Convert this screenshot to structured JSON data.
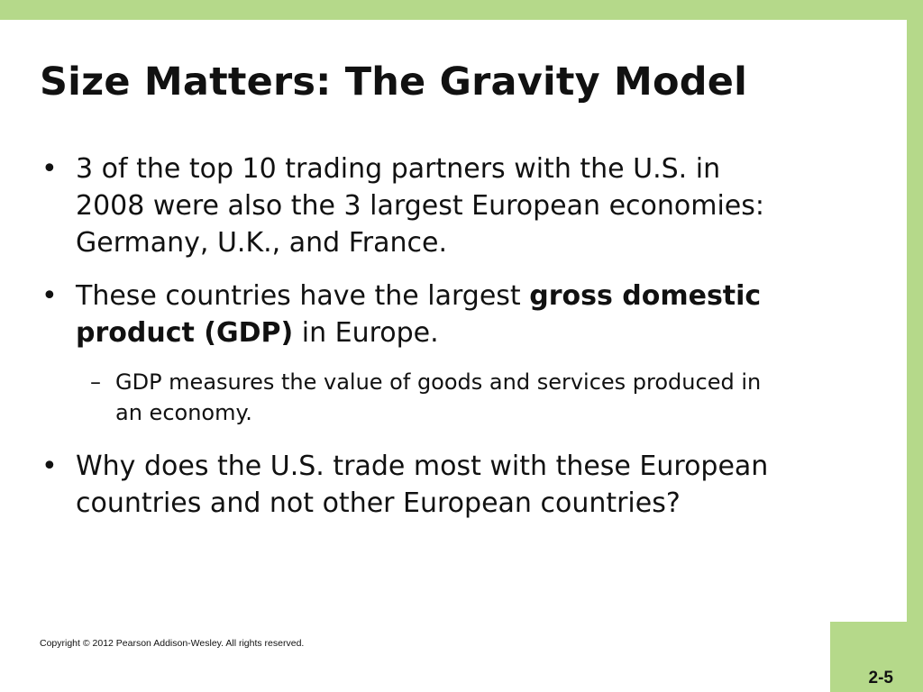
{
  "slide": {
    "title": "Size Matters: The Gravity Model",
    "bullets": [
      {
        "marker": "•",
        "text": "3 of the top 10 trading partners with the U.S. in 2008 were also the 3 largest European economies: Germany, U.K., and France."
      },
      {
        "marker": "•",
        "text_before": "These countries have the largest ",
        "bold_text": "gross domestic product (GDP)",
        "text_after": " in Europe.",
        "sub": {
          "marker": "–",
          "text": "GDP measures the value of goods and services produced in an economy."
        }
      },
      {
        "marker": "•",
        "text": "Why does the U.S. trade most with these European countries and not other European countries?"
      }
    ]
  },
  "footer": {
    "copyright": "Copyright © 2012 Pearson Addison-Wesley. All rights reserved.",
    "page_number": "2-5"
  },
  "colors": {
    "accent_green": "#b5d98a",
    "background": "#ffffff",
    "text": "#111111"
  }
}
